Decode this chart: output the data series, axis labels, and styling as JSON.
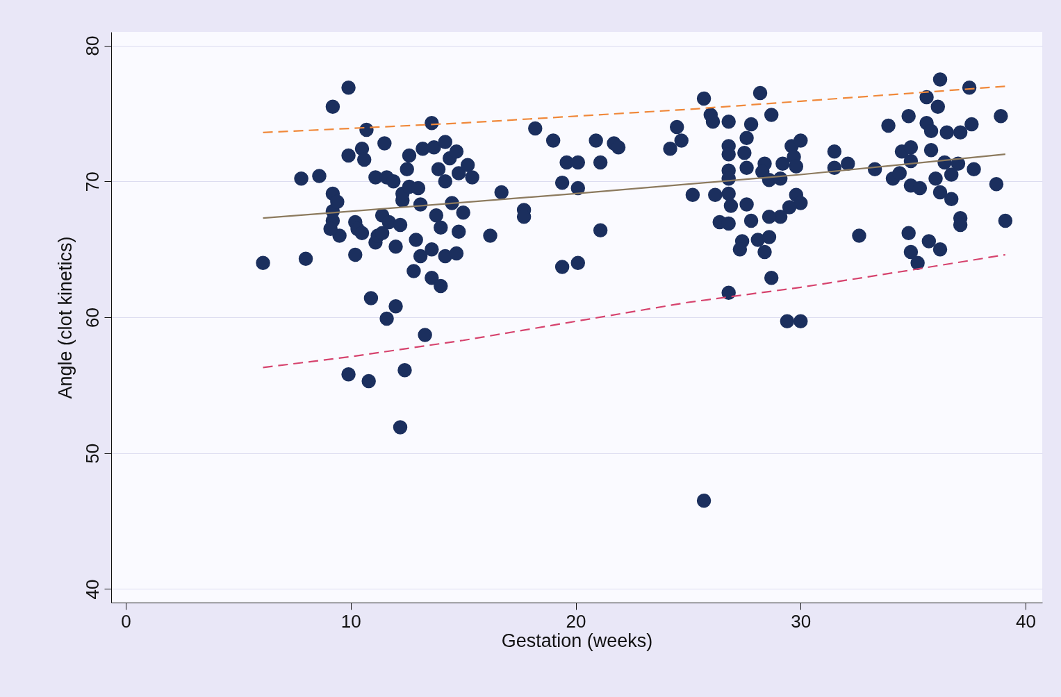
{
  "chart_data": {
    "type": "scatter",
    "xlabel": "Gestation (weeks)",
    "ylabel": "Angle (clot kinetics)",
    "xlim": [
      -0.65,
      40.74
    ],
    "ylim": [
      39.0,
      81.0
    ],
    "xticks": [
      0,
      10,
      20,
      30,
      40
    ],
    "yticks": [
      40,
      50,
      60,
      70,
      80
    ],
    "grid": "y",
    "series": [
      {
        "color": "#1b2f5e",
        "marker": "circle",
        "x": [
          6.1,
          8.0,
          7.8,
          8.6,
          9.2,
          9.9,
          9.2,
          9.2,
          9.2,
          9.4,
          9.5,
          9.1,
          9.9,
          10.2,
          10.2,
          10.3,
          10.5,
          10.7,
          10.6,
          10.5,
          10.9,
          10.8,
          9.9,
          11.1,
          11.2,
          11.4,
          11.5,
          11.4,
          11.1,
          11.6,
          11.9,
          11.6,
          12.0,
          12.0,
          11.7,
          12.2,
          12.3,
          12.3,
          12.5,
          12.6,
          12.4,
          12.2,
          12.6,
          12.8,
          12.9,
          13.0,
          13.1,
          13.1,
          13.2,
          13.3,
          13.6,
          13.6,
          13.7,
          13.8,
          13.9,
          14.0,
          14.0,
          14.2,
          14.2,
          14.2,
          14.4,
          14.5,
          14.7,
          14.7,
          14.8,
          15.0,
          15.2,
          15.4,
          13.6,
          14.8,
          16.7,
          17.7,
          17.7,
          16.2,
          18.2,
          19.0,
          19.4,
          19.6,
          20.1,
          19.4,
          20.1,
          20.1,
          20.9,
          21.1,
          21.1,
          21.7,
          21.9,
          24.2,
          24.5,
          24.7,
          25.2,
          25.7,
          25.7,
          28.2,
          28.7,
          26.0,
          26.1,
          26.8,
          27.8,
          27.6,
          26.8,
          26.8,
          27.5,
          27.6,
          28.4,
          28.3,
          28.6,
          29.1,
          29.2,
          29.6,
          30.0,
          29.7,
          29.8,
          26.8,
          26.8,
          26.2,
          26.8,
          26.9,
          27.6,
          29.8,
          30.0,
          29.5,
          29.1,
          28.6,
          26.4,
          26.8,
          27.8,
          27.4,
          27.3,
          28.1,
          28.6,
          28.4,
          28.7,
          26.8,
          29.4,
          30.0,
          31.5,
          31.5,
          32.6,
          32.1,
          33.3,
          36.2,
          37.5,
          35.6,
          36.1,
          38.9,
          34.8,
          33.9,
          35.6,
          35.8,
          36.5,
          37.1,
          37.6,
          34.5,
          34.9,
          34.9,
          35.8,
          36.4,
          37.0,
          36.7,
          37.7,
          34.1,
          34.4,
          34.9,
          35.3,
          36.0,
          36.2,
          36.7,
          38.7,
          37.1,
          37.1,
          39.1,
          34.8,
          35.7,
          36.2,
          34.9,
          35.2
        ],
        "values": [
          64.0,
          64.3,
          70.2,
          70.4,
          75.5,
          76.9,
          69.1,
          67.8,
          67.1,
          68.5,
          66.0,
          66.5,
          71.9,
          64.6,
          67.0,
          66.5,
          72.4,
          73.8,
          71.6,
          66.2,
          61.4,
          55.3,
          55.8,
          65.5,
          66.0,
          66.2,
          72.8,
          67.5,
          70.3,
          70.3,
          70.0,
          59.9,
          60.8,
          65.2,
          67.0,
          66.8,
          68.6,
          69.1,
          70.9,
          71.9,
          56.1,
          51.9,
          69.6,
          63.4,
          65.7,
          69.5,
          68.3,
          64.5,
          72.4,
          58.7,
          62.9,
          74.3,
          72.5,
          67.5,
          70.9,
          62.3,
          66.6,
          64.5,
          70.0,
          72.9,
          71.7,
          68.4,
          72.2,
          64.7,
          70.6,
          67.7,
          71.2,
          70.3,
          65.0,
          66.3,
          69.2,
          67.9,
          67.4,
          66.0,
          73.9,
          73.0,
          69.9,
          71.4,
          71.4,
          63.7,
          69.5,
          64.0,
          73.0,
          71.4,
          66.4,
          72.8,
          72.5,
          72.4,
          74.0,
          73.0,
          69.0,
          76.1,
          46.5,
          76.5,
          74.9,
          74.9,
          74.4,
          74.4,
          74.2,
          73.2,
          72.6,
          72.0,
          72.1,
          71.0,
          71.3,
          70.7,
          70.1,
          70.2,
          71.3,
          72.6,
          73.0,
          71.8,
          71.1,
          70.8,
          70.2,
          69.0,
          69.1,
          68.2,
          68.3,
          69.0,
          68.4,
          68.1,
          67.4,
          67.4,
          67.0,
          66.9,
          67.1,
          65.6,
          65.0,
          65.7,
          65.9,
          64.8,
          62.9,
          61.8,
          59.7,
          59.7,
          72.2,
          71.0,
          66.0,
          71.3,
          70.9,
          77.5,
          76.9,
          76.2,
          75.5,
          74.8,
          74.8,
          74.1,
          74.3,
          73.7,
          73.6,
          73.6,
          74.2,
          72.2,
          72.5,
          71.5,
          72.3,
          71.4,
          71.3,
          70.5,
          70.9,
          70.2,
          70.6,
          69.7,
          69.5,
          70.2,
          69.2,
          68.7,
          69.8,
          67.3,
          66.8,
          67.1,
          66.2,
          65.6,
          65.0,
          64.8,
          64.0
        ]
      },
      {
        "type": "line",
        "color": "#8c7a5e",
        "line_style": "solid",
        "marker": "none",
        "x": [
          6.1,
          10,
          20,
          30,
          39.1
        ],
        "values": [
          67.3,
          67.8,
          69.1,
          70.5,
          72.0
        ]
      },
      {
        "type": "line",
        "color": "#f0883a",
        "line_style": "dashed",
        "marker": "none",
        "x": [
          6.1,
          10,
          15,
          20,
          25,
          30,
          35,
          39.1
        ],
        "values": [
          73.6,
          73.9,
          74.3,
          74.8,
          75.3,
          75.9,
          76.5,
          77.0
        ]
      },
      {
        "type": "line",
        "color": "#d6436e",
        "line_style": "dashed",
        "marker": "none",
        "x": [
          6.1,
          10,
          15,
          20,
          25,
          30,
          35,
          39.1
        ],
        "values": [
          56.3,
          57.1,
          58.3,
          59.7,
          61.1,
          62.2,
          63.5,
          64.6
        ]
      }
    ]
  }
}
